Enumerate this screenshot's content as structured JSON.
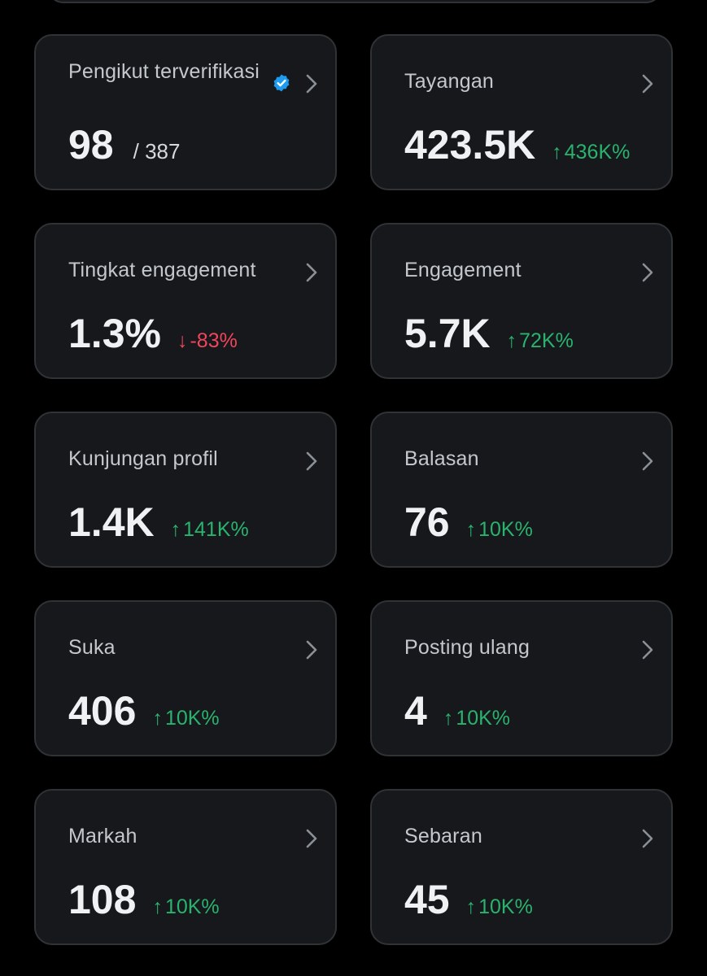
{
  "colors": {
    "background": "#000000",
    "card": "#16181c",
    "card_border": "#2f3336",
    "up": "#29b36e",
    "down": "#f0455a",
    "verified": "#1d9bf0"
  },
  "cards": [
    {
      "label": "Pengikut terverifikasi",
      "value": "98",
      "total": "/ 387",
      "icon": "verified-badge-icon"
    },
    {
      "label": "Tayangan",
      "value": "423.5K",
      "direction": "up",
      "change": "436K%"
    },
    {
      "label": "Tingkat engagement",
      "value": "1.3%",
      "direction": "down",
      "change": "-83%"
    },
    {
      "label": "Engagement",
      "value": "5.7K",
      "direction": "up",
      "change": "72K%"
    },
    {
      "label": "Kunjungan profil",
      "value": "1.4K",
      "direction": "up",
      "change": "141K%"
    },
    {
      "label": "Balasan",
      "value": "76",
      "direction": "up",
      "change": "10K%"
    },
    {
      "label": "Suka",
      "value": "406",
      "direction": "up",
      "change": "10K%"
    },
    {
      "label": "Posting ulang",
      "value": "4",
      "direction": "up",
      "change": "10K%"
    },
    {
      "label": "Markah",
      "value": "108",
      "direction": "up",
      "change": "10K%"
    },
    {
      "label": "Sebaran",
      "value": "45",
      "direction": "up",
      "change": "10K%"
    }
  ]
}
